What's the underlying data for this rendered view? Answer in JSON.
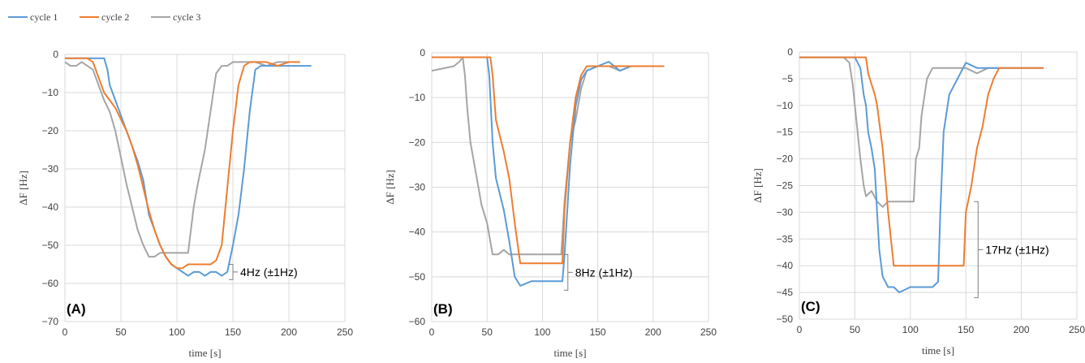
{
  "legend": [
    {
      "name": "cycle 1",
      "color": "#5B9BD5"
    },
    {
      "name": "cycle 2",
      "color": "#ED7D31"
    },
    {
      "name": "cycle 3",
      "color": "#A5A5A5"
    }
  ],
  "chart_data": [
    {
      "type": "line",
      "panel_label": "(A)",
      "xlabel": "time [s]",
      "ylabel": "ΔF [Hz]",
      "xlim": [
        0,
        250
      ],
      "ylim": [
        -70,
        0
      ],
      "xticks": [
        0,
        50,
        100,
        150,
        200,
        250
      ],
      "yticks": [
        0,
        -10,
        -20,
        -30,
        -40,
        -50,
        -60,
        -70
      ],
      "grid": true,
      "annotation": {
        "text": "4Hz (±1Hz)",
        "x": 150,
        "y_top": -55,
        "y_bottom": -59
      },
      "series": [
        {
          "name": "cycle 1",
          "x": [
            0,
            35,
            38,
            40,
            45,
            50,
            55,
            60,
            65,
            70,
            75,
            80,
            85,
            90,
            95,
            100,
            105,
            110,
            115,
            120,
            125,
            130,
            135,
            140,
            145,
            150,
            155,
            160,
            165,
            170,
            175,
            180,
            190,
            200,
            210,
            220
          ],
          "y": [
            -1,
            -1,
            -4,
            -8,
            -12,
            -16,
            -20,
            -24,
            -28,
            -33,
            -42,
            -46,
            -50,
            -53,
            -55,
            -56,
            -57,
            -58,
            -57,
            -57,
            -58,
            -57,
            -57,
            -58,
            -57,
            -50,
            -42,
            -30,
            -15,
            -4,
            -3,
            -3,
            -3,
            -3,
            -3,
            -3
          ]
        },
        {
          "name": "cycle 2",
          "x": [
            0,
            20,
            25,
            30,
            35,
            40,
            45,
            50,
            55,
            60,
            65,
            70,
            75,
            80,
            85,
            90,
            95,
            100,
            105,
            110,
            115,
            120,
            125,
            130,
            135,
            140,
            145,
            150,
            155,
            160,
            165,
            170,
            180,
            190,
            200,
            210
          ],
          "y": [
            -1,
            -1,
            -2,
            -6,
            -10,
            -12,
            -14,
            -17,
            -20,
            -24,
            -29,
            -35,
            -41,
            -46,
            -50,
            -53,
            -55,
            -56,
            -56,
            -55,
            -55,
            -55,
            -55,
            -55,
            -54,
            -50,
            -35,
            -20,
            -8,
            -3,
            -2,
            -2,
            -2,
            -3,
            -2,
            -2
          ]
        },
        {
          "name": "cycle 3",
          "x": [
            0,
            5,
            10,
            15,
            20,
            25,
            30,
            35,
            40,
            45,
            50,
            55,
            60,
            65,
            70,
            75,
            80,
            85,
            90,
            95,
            100,
            105,
            110,
            115,
            118,
            120,
            125,
            130,
            135,
            140,
            145,
            150,
            160,
            170,
            180,
            190,
            200
          ],
          "y": [
            -2,
            -3,
            -3,
            -2,
            -3,
            -4,
            -8,
            -12,
            -15,
            -20,
            -27,
            -34,
            -40,
            -46,
            -50,
            -53,
            -53,
            -52,
            -52,
            -52,
            -52,
            -52,
            -52,
            -40,
            -35,
            -32,
            -25,
            -15,
            -5,
            -3,
            -3,
            -2,
            -2,
            -2,
            -3,
            -2,
            -2
          ]
        }
      ]
    },
    {
      "type": "line",
      "panel_label": "(B)",
      "xlabel": "time [s]",
      "ylabel": "ΔF [Hz]",
      "xlim": [
        0,
        250
      ],
      "ylim": [
        -60,
        0
      ],
      "xticks": [
        0,
        50,
        100,
        150,
        200,
        250
      ],
      "yticks": [
        0,
        -10,
        -20,
        -30,
        -40,
        -50,
        -60
      ],
      "grid": true,
      "annotation": {
        "text": "8Hz (±1Hz)",
        "x": 123,
        "y_top": -45,
        "y_bottom": -53
      },
      "series": [
        {
          "name": "cycle 1",
          "x": [
            0,
            30,
            40,
            50,
            52,
            55,
            58,
            60,
            65,
            70,
            75,
            80,
            90,
            100,
            110,
            115,
            118,
            120,
            125,
            130,
            135,
            140,
            150,
            160,
            170,
            180,
            190,
            200,
            205,
            210
          ],
          "y": [
            -1,
            -1,
            -1,
            -1,
            -5,
            -20,
            -28,
            -30,
            -35,
            -42,
            -50,
            -52,
            -51,
            -51,
            -51,
            -51,
            -51,
            -45,
            -25,
            -12,
            -6,
            -4,
            -3,
            -2,
            -4,
            -3,
            -3,
            -3,
            -3,
            -3
          ]
        },
        {
          "name": "cycle 2",
          "x": [
            0,
            20,
            40,
            50,
            53,
            55,
            58,
            60,
            65,
            70,
            75,
            80,
            90,
            100,
            110,
            115,
            118,
            120,
            125,
            130,
            135,
            140,
            150,
            160,
            170,
            180,
            190,
            200,
            210
          ],
          "y": [
            -1,
            -1,
            -1,
            -1,
            -1,
            -5,
            -15,
            -17,
            -22,
            -28,
            -38,
            -47,
            -47,
            -47,
            -47,
            -47,
            -47,
            -35,
            -20,
            -10,
            -5,
            -3,
            -3,
            -3,
            -3,
            -3,
            -3,
            -3,
            -3
          ]
        },
        {
          "name": "cycle 3",
          "x": [
            0,
            20,
            25,
            28,
            30,
            32,
            35,
            40,
            45,
            50,
            55,
            60,
            65,
            70,
            80,
            90,
            100,
            110,
            115,
            117,
            120,
            125,
            130,
            135,
            140,
            150,
            160,
            170,
            180,
            190,
            200
          ],
          "y": [
            -4,
            -3,
            -2,
            -1,
            -5,
            -12,
            -20,
            -27,
            -34,
            -38,
            -45,
            -45,
            -44,
            -45,
            -45,
            -45,
            -45,
            -45,
            -45,
            -45,
            -33,
            -20,
            -15,
            -8,
            -4,
            -3,
            -3,
            -4,
            -3,
            -3,
            -3
          ]
        }
      ]
    },
    {
      "type": "line",
      "panel_label": "(C)",
      "xlabel": "time [s]",
      "ylabel": "ΔF [Hz]",
      "xlim": [
        0,
        250
      ],
      "ylim": [
        -50,
        0
      ],
      "xticks": [
        0,
        50,
        100,
        150,
        200,
        250
      ],
      "yticks": [
        0,
        -5,
        -10,
        -15,
        -20,
        -25,
        -30,
        -35,
        -40,
        -45,
        -50
      ],
      "grid": true,
      "annotation": {
        "text": "17Hz (±1Hz)",
        "x": 161,
        "y_top": -28,
        "y_bottom": -46
      },
      "series": [
        {
          "name": "cycle 1",
          "x": [
            0,
            20,
            40,
            50,
            55,
            58,
            60,
            62,
            65,
            68,
            70,
            72,
            75,
            80,
            85,
            90,
            100,
            110,
            120,
            125,
            127,
            130,
            135,
            140,
            145,
            150,
            160,
            170,
            180,
            190,
            200,
            210,
            220
          ],
          "y": [
            -1,
            -1,
            -1,
            -1,
            -3,
            -8,
            -10,
            -15,
            -18,
            -22,
            -30,
            -37,
            -42,
            -44,
            -44,
            -45,
            -44,
            -44,
            -44,
            -43,
            -30,
            -15,
            -8,
            -6,
            -4,
            -2,
            -3,
            -3,
            -3,
            -3,
            -3,
            -3,
            -3
          ]
        },
        {
          "name": "cycle 2",
          "x": [
            0,
            20,
            40,
            55,
            60,
            62,
            65,
            68,
            70,
            75,
            78,
            80,
            85,
            90,
            100,
            110,
            120,
            130,
            140,
            145,
            148,
            150,
            155,
            160,
            165,
            170,
            175,
            180,
            190,
            200,
            210,
            220
          ],
          "y": [
            -1,
            -1,
            -1,
            -1,
            -1,
            -4,
            -6,
            -8,
            -10,
            -18,
            -25,
            -30,
            -40,
            -40,
            -40,
            -40,
            -40,
            -40,
            -40,
            -40,
            -40,
            -30,
            -25,
            -18,
            -14,
            -8,
            -5,
            -3,
            -3,
            -3,
            -3,
            -3
          ]
        },
        {
          "name": "cycle 3",
          "x": [
            0,
            20,
            30,
            40,
            45,
            48,
            50,
            52,
            55,
            58,
            60,
            65,
            70,
            75,
            80,
            85,
            90,
            95,
            100,
            103,
            105,
            108,
            110,
            115,
            120,
            130,
            140,
            150,
            160,
            170,
            180
          ],
          "y": [
            -1,
            -1,
            -1,
            -1,
            -2,
            -6,
            -10,
            -14,
            -20,
            -25,
            -27,
            -26,
            -28,
            -29,
            -28,
            -28,
            -28,
            -28,
            -28,
            -28,
            -20,
            -18,
            -12,
            -5,
            -3,
            -3,
            -3,
            -3,
            -4,
            -3,
            -3
          ]
        }
      ]
    }
  ]
}
